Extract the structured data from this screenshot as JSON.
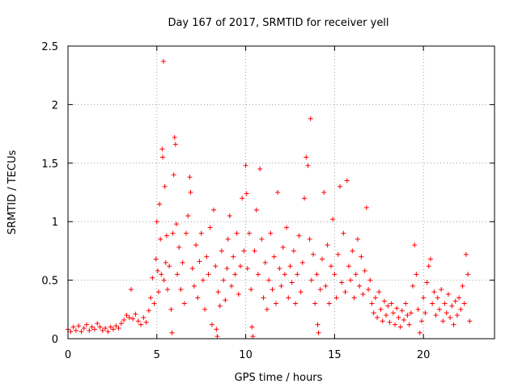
{
  "chart_data": {
    "type": "scatter",
    "title": "Day 167 of 2017, SRMTID for receiver yell",
    "xlabel": "GPS time / hours",
    "ylabel": "SRMTID / TECUs",
    "xlim": [
      0,
      24
    ],
    "ylim": [
      0,
      2.5
    ],
    "grid": true,
    "x_ticks": [
      0,
      5,
      10,
      15,
      20
    ],
    "x_tick_labels": [
      "0",
      "5",
      "10",
      "15",
      "20"
    ],
    "y_ticks": [
      0,
      0.5,
      1,
      1.5,
      2,
      2.5
    ],
    "y_tick_labels": [
      "0",
      "0.5",
      "1",
      "1.5",
      "2",
      "2.5"
    ],
    "marker": "+",
    "color": "#ff0000",
    "series": [
      {
        "name": "SRMTID",
        "points": [
          [
            0.0,
            0.08
          ],
          [
            0.15,
            0.06
          ],
          [
            0.3,
            0.1
          ],
          [
            0.45,
            0.07
          ],
          [
            0.6,
            0.11
          ],
          [
            0.75,
            0.06
          ],
          [
            0.9,
            0.09
          ],
          [
            1.05,
            0.12
          ],
          [
            1.2,
            0.07
          ],
          [
            1.35,
            0.1
          ],
          [
            1.5,
            0.08
          ],
          [
            1.65,
            0.13
          ],
          [
            1.8,
            0.1
          ],
          [
            1.95,
            0.07
          ],
          [
            2.1,
            0.09
          ],
          [
            2.25,
            0.06
          ],
          [
            2.4,
            0.1
          ],
          [
            2.55,
            0.08
          ],
          [
            2.7,
            0.11
          ],
          [
            2.85,
            0.09
          ],
          [
            3.0,
            0.13
          ],
          [
            3.15,
            0.16
          ],
          [
            3.3,
            0.2
          ],
          [
            3.45,
            0.18
          ],
          [
            3.55,
            0.42
          ],
          [
            3.65,
            0.17
          ],
          [
            3.8,
            0.21
          ],
          [
            3.95,
            0.15
          ],
          [
            4.1,
            0.12
          ],
          [
            4.25,
            0.18
          ],
          [
            4.4,
            0.14
          ],
          [
            4.55,
            0.24
          ],
          [
            4.65,
            0.35
          ],
          [
            4.75,
            0.52
          ],
          [
            4.85,
            0.3
          ],
          [
            4.95,
            0.68
          ],
          [
            5.0,
            1.0
          ],
          [
            5.05,
            0.58
          ],
          [
            5.1,
            0.4
          ],
          [
            5.15,
            1.15
          ],
          [
            5.2,
            0.85
          ],
          [
            5.25,
            0.55
          ],
          [
            5.3,
            1.62
          ],
          [
            5.33,
            1.55
          ],
          [
            5.37,
            2.37
          ],
          [
            5.4,
            0.5
          ],
          [
            5.45,
            1.3
          ],
          [
            5.5,
            0.65
          ],
          [
            5.55,
            0.88
          ],
          [
            5.6,
            0.42
          ],
          [
            5.7,
            0.62
          ],
          [
            5.8,
            0.25
          ],
          [
            5.85,
            0.05
          ],
          [
            5.9,
            0.9
          ],
          [
            5.95,
            1.4
          ],
          [
            6.0,
            1.72
          ],
          [
            6.05,
            1.66
          ],
          [
            6.1,
            0.98
          ],
          [
            6.15,
            0.55
          ],
          [
            6.25,
            0.78
          ],
          [
            6.35,
            0.42
          ],
          [
            6.45,
            0.65
          ],
          [
            6.55,
            0.3
          ],
          [
            6.65,
            0.9
          ],
          [
            6.75,
            1.05
          ],
          [
            6.85,
            1.38
          ],
          [
            6.9,
            1.25
          ],
          [
            7.0,
            0.6
          ],
          [
            7.1,
            0.45
          ],
          [
            7.2,
            0.8
          ],
          [
            7.3,
            0.35
          ],
          [
            7.4,
            0.66
          ],
          [
            7.5,
            0.9
          ],
          [
            7.6,
            0.5
          ],
          [
            7.7,
            0.25
          ],
          [
            7.8,
            0.7
          ],
          [
            7.9,
            0.55
          ],
          [
            8.0,
            0.95
          ],
          [
            8.1,
            0.12
          ],
          [
            8.2,
            1.1
          ],
          [
            8.3,
            0.62
          ],
          [
            8.35,
            0.08
          ],
          [
            8.4,
            0.02
          ],
          [
            8.45,
            0.4
          ],
          [
            8.55,
            0.28
          ],
          [
            8.65,
            0.75
          ],
          [
            8.75,
            0.5
          ],
          [
            8.85,
            0.33
          ],
          [
            8.95,
            0.6
          ],
          [
            9.0,
            0.85
          ],
          [
            9.1,
            1.05
          ],
          [
            9.2,
            0.45
          ],
          [
            9.3,
            0.7
          ],
          [
            9.4,
            0.55
          ],
          [
            9.5,
            0.9
          ],
          [
            9.6,
            0.38
          ],
          [
            9.7,
            0.62
          ],
          [
            9.8,
            1.2
          ],
          [
            9.9,
            0.75
          ],
          [
            10.0,
            1.48
          ],
          [
            10.05,
            1.24
          ],
          [
            10.1,
            0.6
          ],
          [
            10.2,
            0.9
          ],
          [
            10.3,
            0.42
          ],
          [
            10.35,
            0.1
          ],
          [
            10.4,
            0.02
          ],
          [
            10.5,
            0.75
          ],
          [
            10.6,
            1.1
          ],
          [
            10.7,
            0.55
          ],
          [
            10.8,
            1.45
          ],
          [
            10.9,
            0.85
          ],
          [
            11.0,
            0.35
          ],
          [
            11.1,
            0.65
          ],
          [
            11.2,
            0.25
          ],
          [
            11.3,
            0.5
          ],
          [
            11.4,
            0.9
          ],
          [
            11.5,
            0.42
          ],
          [
            11.6,
            0.7
          ],
          [
            11.7,
            0.3
          ],
          [
            11.8,
            1.25
          ],
          [
            11.9,
            0.6
          ],
          [
            12.0,
            0.45
          ],
          [
            12.1,
            0.78
          ],
          [
            12.2,
            0.55
          ],
          [
            12.3,
            0.95
          ],
          [
            12.4,
            0.35
          ],
          [
            12.5,
            0.62
          ],
          [
            12.6,
            0.48
          ],
          [
            12.7,
            0.75
          ],
          [
            12.8,
            0.3
          ],
          [
            12.9,
            0.55
          ],
          [
            13.0,
            0.88
          ],
          [
            13.1,
            0.4
          ],
          [
            13.2,
            0.65
          ],
          [
            13.3,
            1.2
          ],
          [
            13.4,
            1.55
          ],
          [
            13.5,
            1.48
          ],
          [
            13.6,
            0.85
          ],
          [
            13.65,
            1.88
          ],
          [
            13.7,
            0.5
          ],
          [
            13.8,
            0.72
          ],
          [
            13.9,
            0.3
          ],
          [
            14.0,
            0.55
          ],
          [
            14.05,
            0.12
          ],
          [
            14.1,
            0.05
          ],
          [
            14.2,
            0.42
          ],
          [
            14.3,
            0.68
          ],
          [
            14.4,
            1.25
          ],
          [
            14.5,
            0.45
          ],
          [
            14.6,
            0.8
          ],
          [
            14.7,
            0.3
          ],
          [
            14.8,
            0.62
          ],
          [
            14.9,
            1.02
          ],
          [
            15.0,
            0.55
          ],
          [
            15.1,
            0.35
          ],
          [
            15.2,
            0.72
          ],
          [
            15.3,
            1.3
          ],
          [
            15.4,
            0.48
          ],
          [
            15.5,
            0.9
          ],
          [
            15.6,
            0.4
          ],
          [
            15.7,
            1.35
          ],
          [
            15.8,
            0.62
          ],
          [
            15.9,
            0.5
          ],
          [
            16.0,
            0.75
          ],
          [
            16.1,
            0.35
          ],
          [
            16.2,
            0.55
          ],
          [
            16.3,
            0.85
          ],
          [
            16.4,
            0.45
          ],
          [
            16.5,
            0.7
          ],
          [
            16.6,
            0.38
          ],
          [
            16.7,
            0.58
          ],
          [
            16.8,
            1.12
          ],
          [
            16.9,
            0.42
          ],
          [
            17.0,
            0.5
          ],
          [
            17.1,
            0.3
          ],
          [
            17.2,
            0.22
          ],
          [
            17.3,
            0.35
          ],
          [
            17.4,
            0.18
          ],
          [
            17.5,
            0.4
          ],
          [
            17.6,
            0.25
          ],
          [
            17.7,
            0.15
          ],
          [
            17.8,
            0.32
          ],
          [
            17.9,
            0.2
          ],
          [
            18.0,
            0.28
          ],
          [
            18.1,
            0.14
          ],
          [
            18.2,
            0.3
          ],
          [
            18.3,
            0.22
          ],
          [
            18.4,
            0.12
          ],
          [
            18.5,
            0.26
          ],
          [
            18.6,
            0.18
          ],
          [
            18.7,
            0.1
          ],
          [
            18.8,
            0.24
          ],
          [
            18.9,
            0.16
          ],
          [
            19.0,
            0.3
          ],
          [
            19.1,
            0.2
          ],
          [
            19.2,
            0.12
          ],
          [
            19.3,
            0.22
          ],
          [
            19.4,
            0.45
          ],
          [
            19.5,
            0.8
          ],
          [
            19.6,
            0.55
          ],
          [
            19.7,
            0.25
          ],
          [
            19.8,
            0.05
          ],
          [
            19.9,
            0.15
          ],
          [
            20.0,
            0.35
          ],
          [
            20.1,
            0.22
          ],
          [
            20.2,
            0.48
          ],
          [
            20.3,
            0.62
          ],
          [
            20.4,
            0.68
          ],
          [
            20.5,
            0.3
          ],
          [
            20.6,
            0.4
          ],
          [
            20.7,
            0.2
          ],
          [
            20.8,
            0.35
          ],
          [
            20.9,
            0.25
          ],
          [
            21.0,
            0.42
          ],
          [
            21.1,
            0.15
          ],
          [
            21.2,
            0.3
          ],
          [
            21.3,
            0.22
          ],
          [
            21.4,
            0.38
          ],
          [
            21.5,
            0.18
          ],
          [
            21.6,
            0.28
          ],
          [
            21.7,
            0.12
          ],
          [
            21.8,
            0.32
          ],
          [
            21.9,
            0.2
          ],
          [
            22.0,
            0.35
          ],
          [
            22.1,
            0.25
          ],
          [
            22.2,
            0.45
          ],
          [
            22.3,
            0.3
          ],
          [
            22.4,
            0.72
          ],
          [
            22.5,
            0.55
          ],
          [
            22.6,
            0.15
          ]
        ]
      }
    ]
  }
}
